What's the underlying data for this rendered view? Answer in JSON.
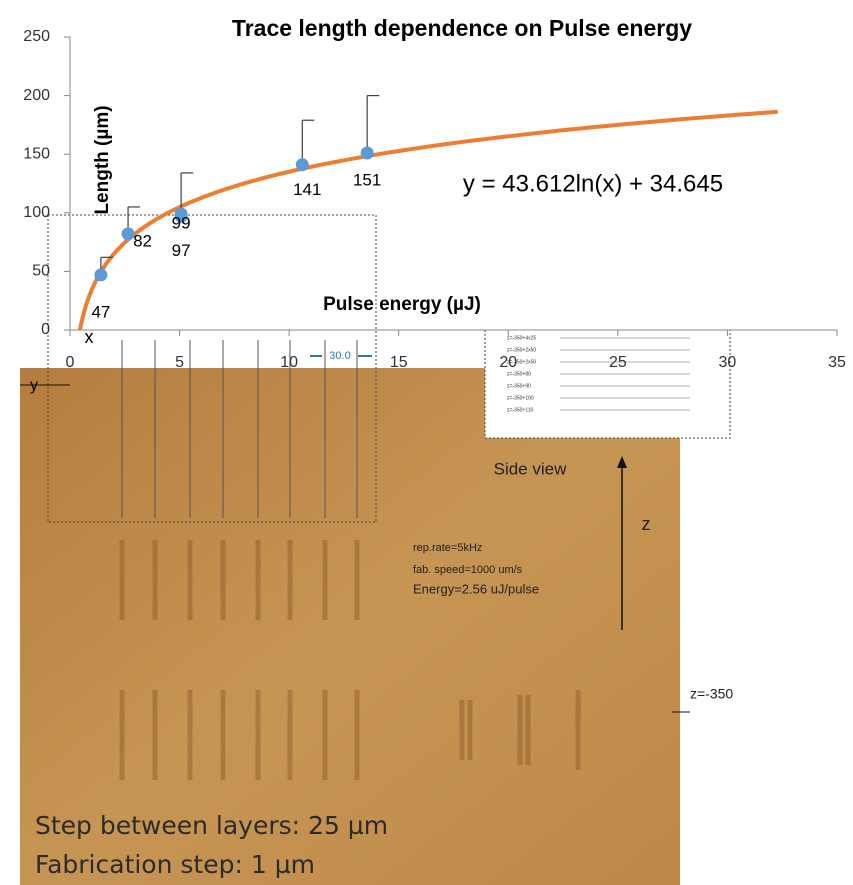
{
  "chart_data": {
    "type": "scatter",
    "title": "Trace length dependence on Pulse energy",
    "x_label": "Pulse energy (µJ)",
    "y_label": "Length (µm)",
    "series": [
      {
        "color": "#5b9bd5",
        "x": [
          1.41,
          2.65,
          5.07,
          5.07,
          10.6,
          13.56
        ],
        "values": [
          47,
          82,
          97,
          99,
          141,
          151
        ],
        "errors": [
          15,
          23,
          null,
          35,
          38,
          49
        ],
        "error_color": "#404040"
      }
    ],
    "trendline": {
      "equation": "y = 43.612ln(x) + 34.645",
      "a": 43.612,
      "b": 34.645,
      "color": "#ed7d31",
      "x_end": 32.3
    },
    "xlim": [
      0,
      35
    ],
    "xticks": [
      0,
      5,
      10,
      15,
      20,
      25,
      30,
      35
    ],
    "ylim": [
      0,
      250
    ],
    "yticks": [
      0,
      50,
      100,
      150,
      200,
      250
    ],
    "grid": false
  },
  "image": {
    "axis_x": "x",
    "axis_y": "y",
    "scale_label": "30.0",
    "side_view": "Side view",
    "z_axis": "z",
    "params": [
      "rep.rate=5kHz",
      "fab. speed=1000 um/s",
      "Energy=2.56 uJ/pulse"
    ],
    "z_marker": "z=-350",
    "layers": [
      "z=-350+4x25",
      "z=-350+2x50",
      "z=-350+2x50",
      "z=-350+80",
      "z=-350+90",
      "z=-350+100",
      "z=-350+110"
    ],
    "caption": [
      "Step between layers: 25 µm",
      "Fabrication step: 1 µm"
    ]
  }
}
